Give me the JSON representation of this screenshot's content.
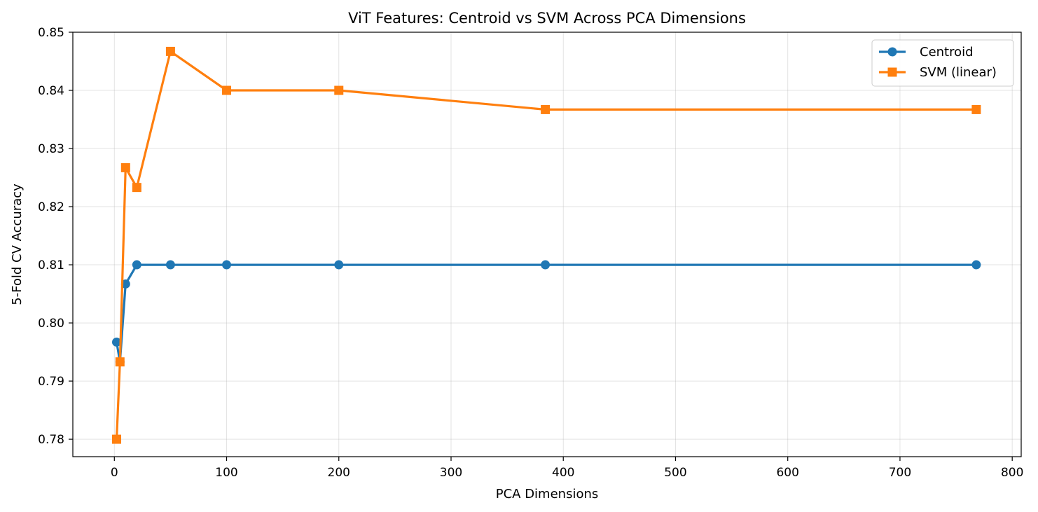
{
  "chart_data": {
    "type": "line",
    "title": "ViT Features: Centroid vs SVM Across PCA Dimensions",
    "xlabel": "PCA Dimensions",
    "ylabel": "5-Fold CV Accuracy",
    "xlim": [
      -37,
      808
    ],
    "ylim": [
      0.777,
      0.85
    ],
    "xticks": [
      0,
      100,
      200,
      300,
      400,
      500,
      600,
      700,
      800
    ],
    "yticks": [
      0.78,
      0.79,
      0.8,
      0.81,
      0.82,
      0.83,
      0.84,
      0.85
    ],
    "ytick_labels": [
      "0.78",
      "0.79",
      "0.80",
      "0.81",
      "0.82",
      "0.83",
      "0.84",
      "0.85"
    ],
    "grid": true,
    "legend_position": "top-right",
    "series": [
      {
        "name": "Centroid",
        "color": "#1f77b4",
        "marker": "circle",
        "x": [
          2,
          5,
          10,
          20,
          50,
          100,
          200,
          384,
          768
        ],
        "values": [
          0.7967,
          0.7933,
          0.8067,
          0.81,
          0.81,
          0.81,
          0.81,
          0.81,
          0.81
        ]
      },
      {
        "name": "SVM (linear)",
        "color": "#ff7f0e",
        "marker": "square",
        "x": [
          2,
          5,
          10,
          20,
          50,
          100,
          200,
          384,
          768
        ],
        "values": [
          0.78,
          0.7933,
          0.8267,
          0.8233,
          0.8467,
          0.84,
          0.84,
          0.8367,
          0.8367
        ]
      }
    ]
  }
}
